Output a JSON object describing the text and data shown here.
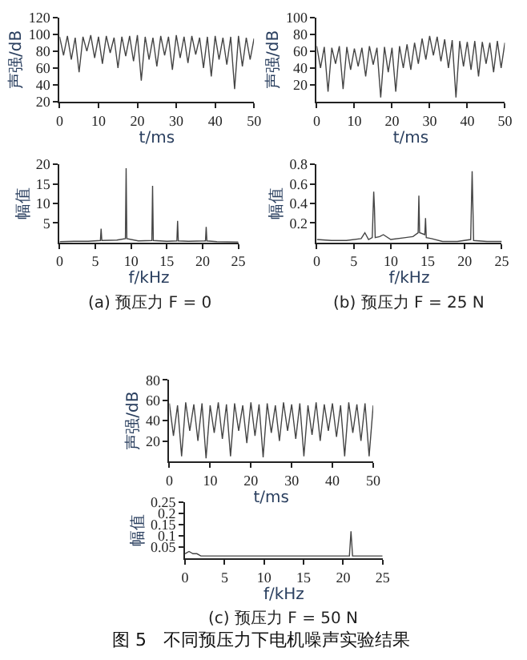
{
  "chart_data": [
    {
      "type": "line",
      "xlabel": "t/ms",
      "ylabel": "声强/dB",
      "xlim": [
        0,
        50
      ],
      "xticks": [
        0,
        10,
        20,
        30,
        40,
        50
      ],
      "ylim": [
        20,
        120
      ],
      "yticks": [
        20,
        40,
        60,
        80,
        100,
        120
      ],
      "color": "#444444",
      "marker": "none",
      "x": [
        0,
        1,
        2,
        3,
        4,
        5,
        6,
        7,
        8,
        9,
        10,
        11,
        12,
        13,
        14,
        15,
        16,
        17,
        18,
        19,
        20,
        21,
        22,
        23,
        24,
        25,
        26,
        27,
        28,
        29,
        30,
        31,
        32,
        33,
        34,
        35,
        36,
        37,
        38,
        39,
        40,
        41,
        42,
        43,
        44,
        45,
        46,
        47,
        48,
        49,
        50
      ],
      "values": [
        97,
        75,
        98,
        70,
        96,
        55,
        97,
        80,
        99,
        72,
        97,
        65,
        98,
        78,
        96,
        60,
        97,
        74,
        98,
        68,
        99,
        45,
        97,
        70,
        96,
        62,
        98,
        75,
        97,
        58,
        99,
        72,
        97,
        66,
        98,
        76,
        96,
        60,
        97,
        50,
        98,
        70,
        96,
        64,
        97,
        35,
        98,
        62,
        96,
        70,
        95
      ]
    },
    {
      "type": "line",
      "xlabel": "t/ms",
      "ylabel": "声强/dB",
      "xlim": [
        0,
        50
      ],
      "xticks": [
        0,
        10,
        20,
        30,
        40,
        50
      ],
      "ylim": [
        0,
        100
      ],
      "yticks": [
        20,
        40,
        60,
        80,
        100
      ],
      "color": "#444444",
      "marker": "none",
      "x": [
        0,
        1,
        2,
        3,
        4,
        5,
        6,
        7,
        8,
        9,
        10,
        11,
        12,
        13,
        14,
        15,
        16,
        17,
        18,
        19,
        20,
        21,
        22,
        23,
        24,
        25,
        26,
        27,
        28,
        29,
        30,
        31,
        32,
        33,
        34,
        35,
        36,
        37,
        38,
        39,
        40,
        41,
        42,
        43,
        44,
        45,
        46,
        47,
        48,
        49,
        50
      ],
      "values": [
        66,
        40,
        65,
        12,
        64,
        45,
        66,
        15,
        65,
        38,
        63,
        42,
        64,
        30,
        66,
        44,
        64,
        5,
        65,
        35,
        64,
        12,
        66,
        40,
        68,
        38,
        70,
        45,
        75,
        50,
        78,
        55,
        77,
        48,
        74,
        40,
        73,
        5,
        72,
        42,
        71,
        38,
        72,
        30,
        71,
        45,
        70,
        35,
        72,
        40,
        70
      ]
    },
    {
      "type": "line",
      "xlabel": "f/kHz",
      "ylabel": "幅值",
      "xlim": [
        0,
        25
      ],
      "xticks": [
        0,
        5,
        10,
        15,
        20,
        25
      ],
      "ylim": [
        0,
        20
      ],
      "yticks": [
        5,
        10,
        15,
        20
      ],
      "color": "#444444",
      "marker": "none",
      "annotations": [
        "(a) 预压力 F = 0"
      ],
      "x": [
        0,
        2,
        4,
        5.7,
        5.8,
        5.9,
        8,
        9.2,
        9.3,
        9.4,
        11,
        12.9,
        13,
        13.1,
        15,
        16.4,
        16.5,
        16.6,
        18,
        20.4,
        20.5,
        20.6,
        22,
        25
      ],
      "values": [
        0.2,
        0.3,
        0.3,
        0.5,
        3.5,
        0.5,
        0.6,
        1,
        19,
        1,
        0.4,
        0.5,
        14.5,
        0.5,
        0.3,
        0.4,
        5.5,
        0.4,
        0.3,
        0.4,
        4,
        0.4,
        0.2,
        0.1
      ]
    },
    {
      "type": "line",
      "xlabel": "f/kHz",
      "ylabel": "幅值",
      "xlim": [
        0,
        25
      ],
      "xticks": [
        0,
        5,
        10,
        15,
        20,
        25
      ],
      "ylim": [
        0,
        0.8
      ],
      "yticks": [
        0.2,
        0.4,
        0.6,
        0.8
      ],
      "color": "#444444",
      "marker": "none",
      "annotations": [
        "(b) 预压力 F = 25 N"
      ],
      "x": [
        0,
        2,
        4,
        6,
        6.5,
        7,
        7.5,
        7.7,
        7.8,
        7.9,
        8.5,
        9,
        10,
        12,
        13,
        13.7,
        13.8,
        13.9,
        14.6,
        14.7,
        14.8,
        15.5,
        17,
        19,
        20.8,
        21,
        21.2,
        23,
        25
      ],
      "values": [
        0.03,
        0.02,
        0.02,
        0.04,
        0.1,
        0.03,
        0.05,
        0.52,
        0.35,
        0.05,
        0.06,
        0.08,
        0.03,
        0.05,
        0.06,
        0.1,
        0.48,
        0.1,
        0.08,
        0.25,
        0.05,
        0.04,
        0.01,
        0.01,
        0.03,
        0.73,
        0.02,
        0.01,
        0.01
      ]
    },
    {
      "type": "line",
      "xlabel": "t/ms",
      "ylabel": "声强/dB",
      "xlim": [
        0,
        50
      ],
      "xticks": [
        0,
        10,
        20,
        30,
        40,
        50
      ],
      "ylim": [
        0,
        80
      ],
      "yticks": [
        20,
        40,
        60,
        80
      ],
      "color": "#444444",
      "marker": "none",
      "x": [
        0,
        1,
        2,
        3,
        4,
        5,
        6,
        7,
        8,
        9,
        10,
        11,
        12,
        13,
        14,
        15,
        16,
        17,
        18,
        19,
        20,
        21,
        22,
        23,
        24,
        25,
        26,
        27,
        28,
        29,
        30,
        31,
        32,
        33,
        34,
        35,
        36,
        37,
        38,
        39,
        40,
        41,
        42,
        43,
        44,
        45,
        46,
        47,
        48,
        49,
        50
      ],
      "values": [
        57,
        25,
        55,
        5,
        58,
        30,
        56,
        20,
        57,
        3,
        55,
        28,
        58,
        22,
        56,
        5,
        57,
        30,
        55,
        18,
        58,
        25,
        56,
        4,
        57,
        28,
        55,
        20,
        58,
        30,
        56,
        22,
        57,
        5,
        55,
        26,
        58,
        20,
        56,
        30,
        57,
        24,
        55,
        5,
        58,
        28,
        56,
        20,
        57,
        5,
        55
      ]
    },
    {
      "type": "line",
      "xlabel": "f/kHz",
      "ylabel": "幅值",
      "xlim": [
        0,
        25
      ],
      "xticks": [
        0,
        5,
        10,
        15,
        20,
        25
      ],
      "ylim": [
        0,
        0.25
      ],
      "yticks": [
        0.05,
        0.1,
        0.15,
        0.2,
        0.25
      ],
      "color": "#444444",
      "marker": "none",
      "annotations": [
        "(c) 预压力 F = 50 N",
        "图 5   不同预压力下电机噪声实验结果"
      ],
      "x": [
        0,
        0.5,
        1,
        1.5,
        2,
        4,
        6,
        8,
        10,
        12,
        15,
        18,
        20,
        20.8,
        21,
        21.2,
        23,
        25
      ],
      "values": [
        0.02,
        0.03,
        0.02,
        0.02,
        0.01,
        0.01,
        0.01,
        0.01,
        0.01,
        0.01,
        0.01,
        0.01,
        0.01,
        0.01,
        0.12,
        0.01,
        0.01,
        0.01
      ]
    }
  ]
}
